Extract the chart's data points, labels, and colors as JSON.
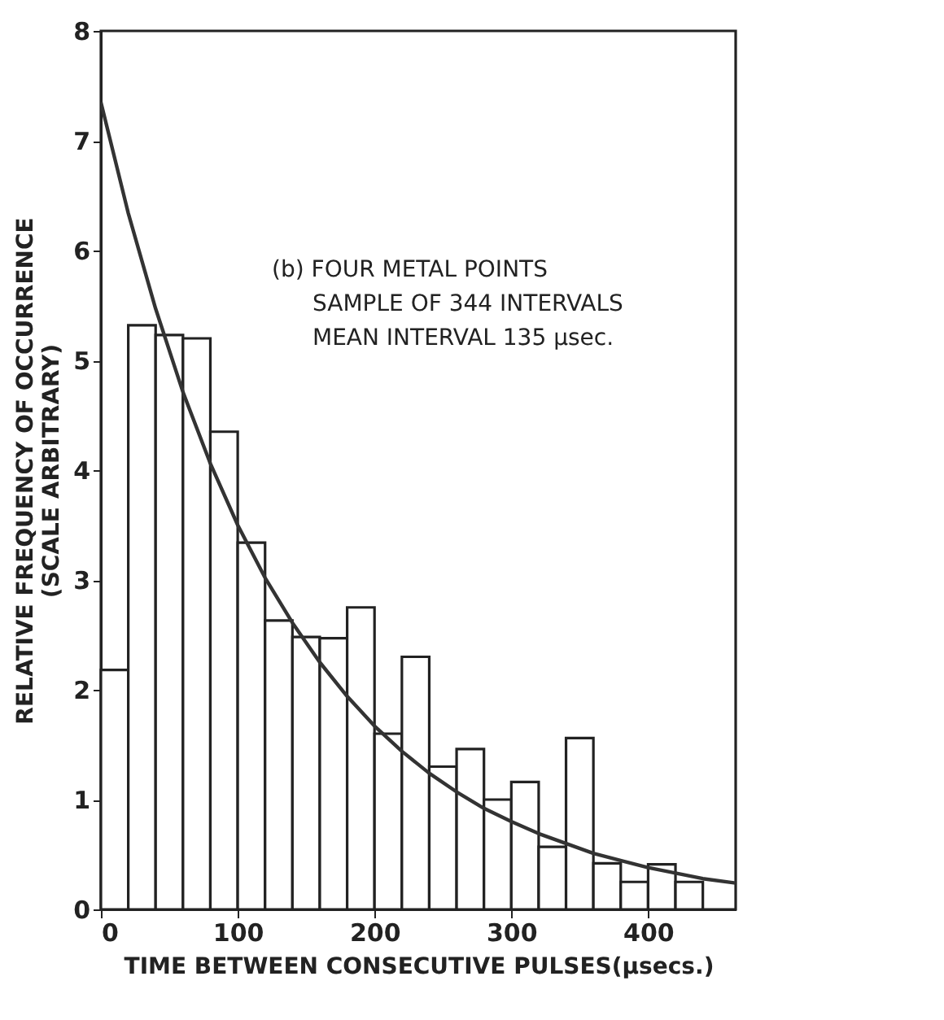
{
  "chart_data": {
    "type": "histogram",
    "xlabel": "TIME BETWEEN CONSECUTIVE PULSES(μsecs.)",
    "ylabel": "RELATIVE FREQUENCY OF OCCURRENCE\n(SCALE ARBITRARY)",
    "annotations": [
      "(b) FOUR METAL POINTS",
      "SAMPLE OF 344 INTERVALS",
      "MEAN INTERVAL 135 μsec."
    ],
    "bins": [
      0,
      20,
      40,
      60,
      80,
      100,
      120,
      140,
      160,
      180,
      200,
      220,
      240,
      260,
      280,
      300,
      320,
      340,
      360,
      380,
      400,
      420,
      440
    ],
    "values": [
      2.18,
      5.32,
      5.23,
      5.2,
      4.35,
      3.34,
      2.63,
      2.48,
      2.47,
      2.75,
      1.6,
      2.3,
      1.3,
      1.46,
      1.0,
      1.16,
      0.57,
      1.56,
      0.42,
      0.25,
      0.41,
      0.25
    ],
    "color": "#ffffff",
    "series": [
      {
        "type": "line",
        "color": "#333333",
        "x": [
          0,
          20,
          40,
          60,
          80,
          100,
          120,
          140,
          160,
          180,
          200,
          220,
          240,
          260,
          280,
          300,
          320,
          360,
          400,
          440,
          464
        ],
        "values": [
          7.35,
          6.34,
          5.47,
          4.71,
          4.06,
          3.5,
          3.02,
          2.61,
          2.25,
          1.94,
          1.67,
          1.44,
          1.24,
          1.07,
          0.92,
          0.8,
          0.69,
          0.51,
          0.38,
          0.28,
          0.24
        ]
      }
    ],
    "xlim": [
      0,
      464
    ],
    "ylim": [
      0,
      8
    ],
    "xticks": [
      0,
      100,
      200,
      300,
      400
    ],
    "yticks": [
      0,
      1,
      2,
      3,
      4,
      5,
      6,
      7,
      8
    ],
    "grid": false
  }
}
